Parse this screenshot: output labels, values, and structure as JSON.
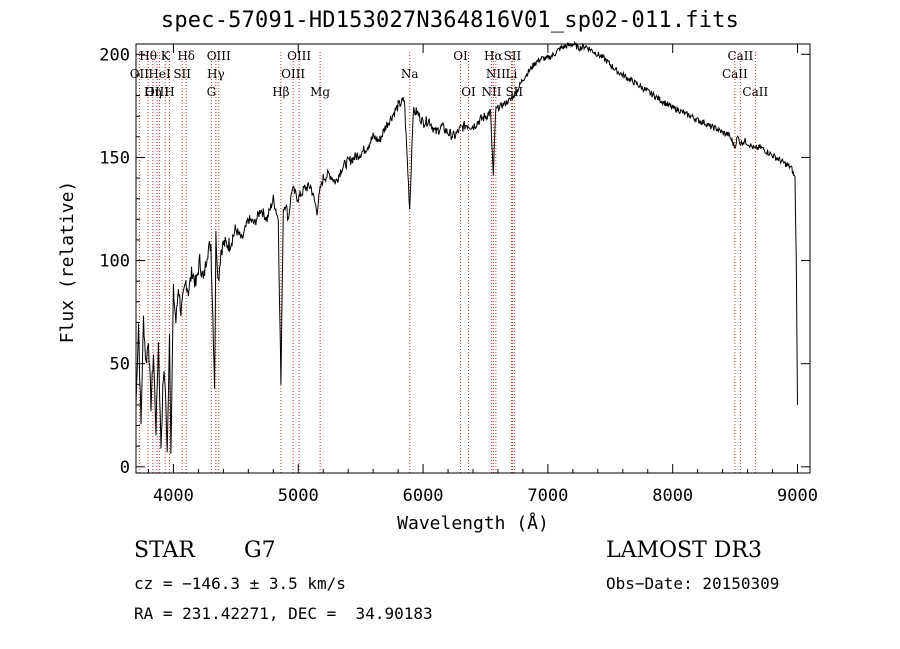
{
  "chart_data": {
    "type": "line",
    "title": "spec-57091-HD153027N364816V01_sp02-011.fits",
    "xlabel": "Wavelength (Å)",
    "ylabel": "Flux (relative)",
    "xlim": [
      3700,
      9100
    ],
    "ylim": [
      -3,
      205
    ],
    "x_ticks": [
      4000,
      5000,
      6000,
      7000,
      8000,
      9000
    ],
    "y_ticks": [
      0,
      50,
      100,
      150,
      200
    ],
    "grid": false,
    "series": [
      {
        "name": "spectrum",
        "x": [
          3700,
          3720,
          3740,
          3760,
          3780,
          3800,
          3820,
          3840,
          3860,
          3880,
          3900,
          3920,
          3935,
          3950,
          3968,
          3980,
          4000,
          4020,
          4040,
          4060,
          4080,
          4100,
          4120,
          4150,
          4180,
          4210,
          4240,
          4270,
          4300,
          4330,
          4340,
          4360,
          4380,
          4400,
          4450,
          4500,
          4550,
          4600,
          4650,
          4700,
          4750,
          4800,
          4840,
          4861,
          4880,
          4900,
          4920,
          4950,
          5000,
          5050,
          5100,
          5150,
          5175,
          5200,
          5250,
          5300,
          5350,
          5400,
          5450,
          5500,
          5550,
          5600,
          5650,
          5700,
          5750,
          5800,
          5850,
          5893,
          5920,
          5950,
          6000,
          6050,
          6100,
          6150,
          6200,
          6250,
          6300,
          6350,
          6400,
          6450,
          6500,
          6540,
          6563,
          6580,
          6600,
          6650,
          6700,
          6750,
          6800,
          6850,
          6900,
          6950,
          7000,
          7050,
          7100,
          7150,
          7200,
          7250,
          7300,
          7350,
          7400,
          7450,
          7500,
          7550,
          7600,
          7650,
          7700,
          7750,
          7800,
          7850,
          7900,
          7950,
          8000,
          8050,
          8100,
          8150,
          8200,
          8250,
          8300,
          8350,
          8400,
          8450,
          8498,
          8520,
          8542,
          8580,
          8620,
          8662,
          8700,
          8750,
          8800,
          8850,
          8900,
          8950,
          8980,
          8990,
          9000
        ],
        "values": [
          30,
          70,
          20,
          72,
          50,
          62,
          30,
          55,
          18,
          60,
          10,
          45,
          40,
          5,
          65,
          10,
          85,
          70,
          88,
          75,
          82,
          90,
          85,
          95,
          88,
          100,
          90,
          104,
          108,
          40,
          112,
          90,
          105,
          108,
          108,
          115,
          110,
          120,
          118,
          125,
          120,
          130,
          120,
          40,
          125,
          128,
          120,
          135,
          130,
          135,
          136,
          124,
          134,
          140,
          142,
          138,
          145,
          148,
          150,
          152,
          155,
          160,
          158,
          165,
          170,
          175,
          178,
          125,
          172,
          172,
          167,
          168,
          162,
          165,
          162,
          160,
          164,
          166,
          165,
          168,
          170,
          172,
          140,
          172,
          174,
          176,
          178,
          182,
          188,
          192,
          196,
          198,
          198,
          200,
          203,
          204,
          205,
          203,
          204,
          202,
          200,
          198,
          195,
          192,
          190,
          188,
          186,
          184,
          182,
          180,
          178,
          176,
          174,
          173,
          171,
          170,
          168,
          167,
          165,
          164,
          162,
          161,
          155,
          160,
          157,
          158,
          156,
          154,
          155,
          153,
          151,
          149,
          147,
          145,
          140,
          100,
          30
        ]
      }
    ],
    "line_markers": [
      {
        "label": "Hθ",
        "x": 3797,
        "row": 0
      },
      {
        "label": "OII",
        "x": 3727,
        "row": 1
      },
      {
        "label": "OIII",
        "x": 3869,
        "row": 2
      },
      {
        "label": "Hη",
        "x": 3835,
        "row": 2
      },
      {
        "label": "HeI",
        "x": 3889,
        "row": 1
      },
      {
        "label": "K",
        "x": 3934,
        "row": 0
      },
      {
        "label": "H",
        "x": 3968,
        "row": 2
      },
      {
        "label": "SII",
        "x": 4070,
        "row": 1
      },
      {
        "label": "Hδ",
        "x": 4102,
        "row": 0
      },
      {
        "label": "G",
        "x": 4304,
        "row": 2
      },
      {
        "label": "Hγ",
        "x": 4340,
        "row": 1
      },
      {
        "label": "OIII",
        "x": 4363,
        "row": 0
      },
      {
        "label": "Hβ",
        "x": 4861,
        "row": 2
      },
      {
        "label": "OIII",
        "x": 4959,
        "row": 1
      },
      {
        "label": "OIII",
        "x": 5007,
        "row": 0
      },
      {
        "label": "Mg",
        "x": 5175,
        "row": 2
      },
      {
        "label": "Na",
        "x": 5893,
        "row": 1
      },
      {
        "label": "OI",
        "x": 6300,
        "row": 0
      },
      {
        "label": "OI",
        "x": 6364,
        "row": 2
      },
      {
        "label": "NII",
        "x": 6548,
        "row": 2
      },
      {
        "label": "NII",
        "x": 6583,
        "row": 1
      },
      {
        "label": "Hα",
        "x": 6563,
        "row": 0
      },
      {
        "label": "Li",
        "x": 6708,
        "row": 1
      },
      {
        "label": "SII",
        "x": 6716,
        "row": 0
      },
      {
        "label": "SII",
        "x": 6731,
        "row": 2
      },
      {
        "label": "CaII",
        "x": 8498,
        "row": 1
      },
      {
        "label": "CaII",
        "x": 8542,
        "row": 0
      },
      {
        "label": "CaII",
        "x": 8662,
        "row": 2
      }
    ]
  },
  "info": {
    "object_class": "STAR",
    "subclass": "G7",
    "cz": "cz = −146.3 ± 3.5 km/s",
    "coords": "RA = 231.42271, DEC =  34.90183",
    "survey": "LAMOST DR3",
    "obs_date": "Obs−Date: 20150309"
  },
  "colors": {
    "line_marker": "#c0392b",
    "spectrum": "#000000"
  }
}
